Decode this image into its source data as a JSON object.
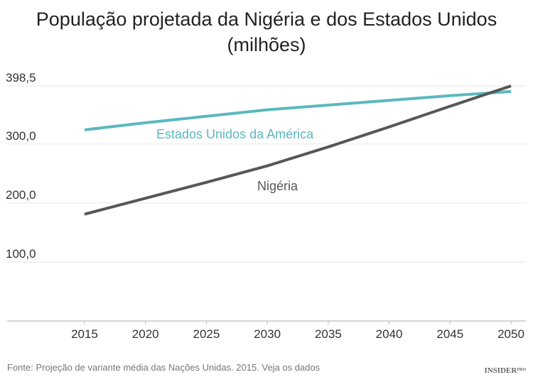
{
  "chart_data": {
    "type": "line",
    "title": "População projetada da Nigéria e dos Estados Unidos",
    "subtitle": "(milhões)",
    "x": [
      2015,
      2020,
      2025,
      2030,
      2035,
      2040,
      2045,
      2050
    ],
    "x_tick_labels": [
      "2015",
      "2020",
      "2025",
      "2030",
      "2035",
      "2040",
      "2045",
      "2050"
    ],
    "y_ticks": [
      100,
      200,
      300,
      398.5
    ],
    "y_tick_labels": [
      "100,0",
      "200,0",
      "300,0",
      "398,5"
    ],
    "ylim": [
      0,
      398.5
    ],
    "grid": "horizontal",
    "series": [
      {
        "name": "Estados Unidos da América",
        "color": "#5bb8bf",
        "values": [
          324,
          336,
          347,
          358,
          366,
          374,
          382,
          389
        ]
      },
      {
        "name": "Nigéria",
        "color": "#555759",
        "values": [
          181,
          208,
          235,
          263,
          295,
          329,
          364,
          398.5
        ]
      }
    ],
    "source": "Fonte: Projeção de variante média das Nações Unidas. 2015. Veja os dados",
    "logo": "INSIDER PRO"
  }
}
